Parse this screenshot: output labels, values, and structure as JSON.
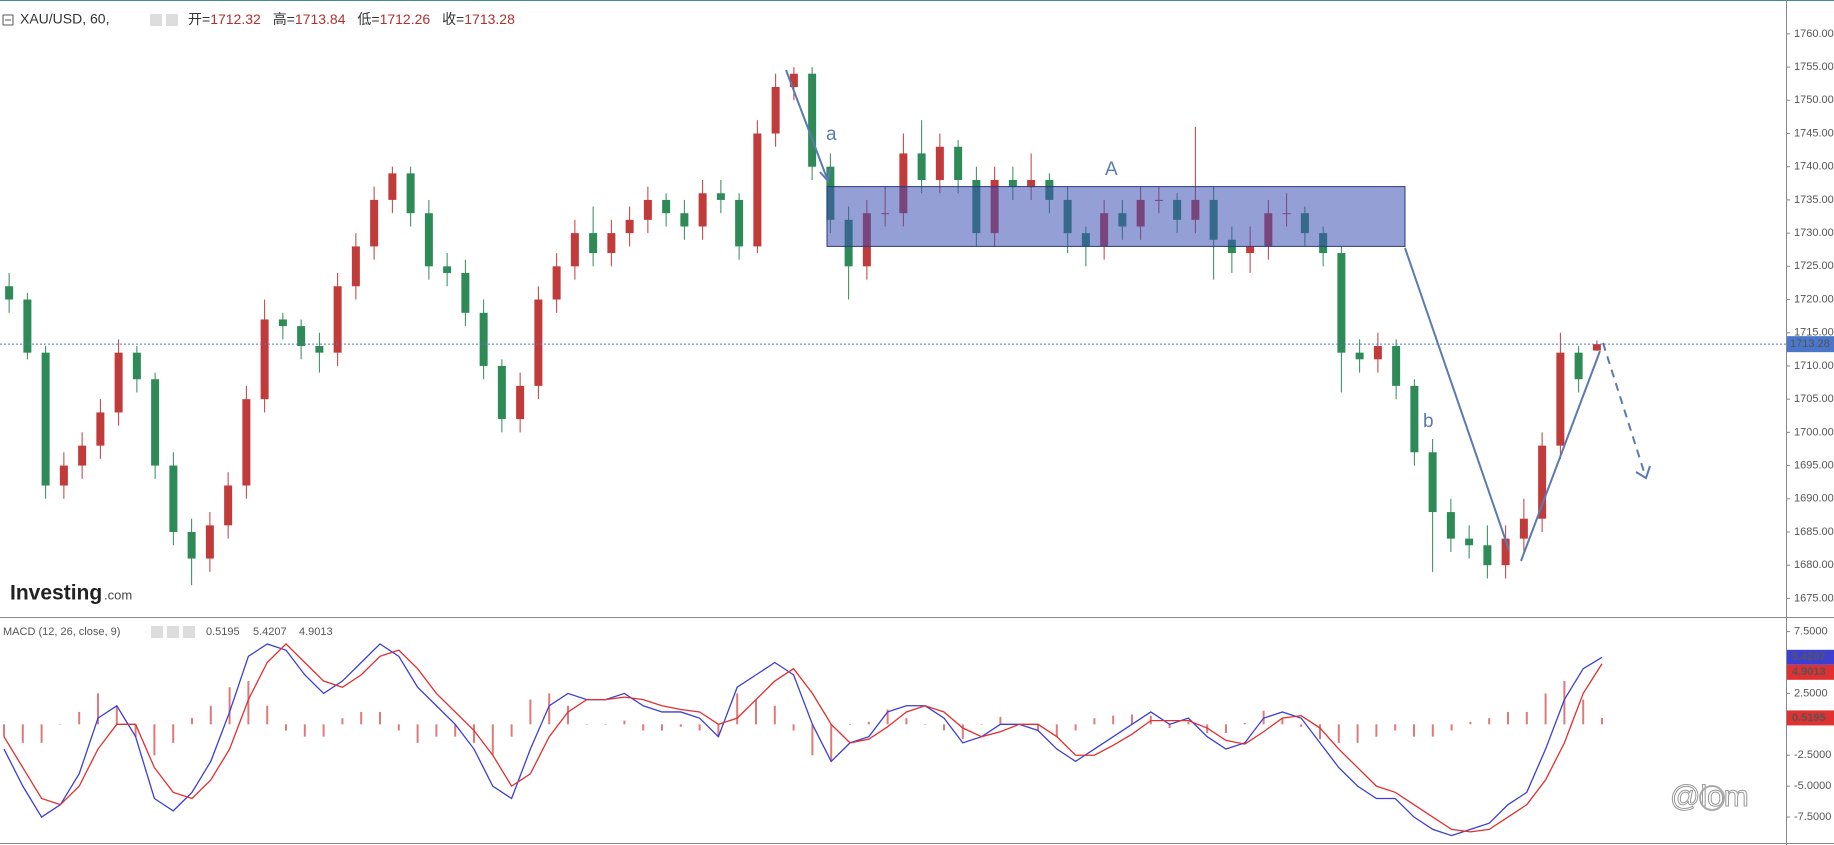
{
  "header": {
    "symbol": "XAU/USD, 60,",
    "open_label": "开=",
    "high_label": "高=",
    "low_label": "低=",
    "close_label": "收=",
    "watermark": "Investing",
    "watermark_suffix": ".com",
    "credit": "@lom"
  },
  "annotations": {
    "wave_a": "a",
    "zone": "A",
    "wave_b": "b"
  },
  "chart_data": [
    {
      "type": "candlestick",
      "up_color": "#c23b3b",
      "down_color": "#2e8b57",
      "price_line_color": "#4a77c9",
      "ylim": [
        1672.2,
        1765.1
      ],
      "yticks": [
        {
          "value": 1760,
          "label": "1760.00"
        },
        {
          "value": 1755,
          "label": "1755.00"
        },
        {
          "value": 1750,
          "label": "1750.00"
        },
        {
          "value": 1745,
          "label": "1745.00"
        },
        {
          "value": 1740,
          "label": "1740.00"
        },
        {
          "value": 1735,
          "label": "1735.00"
        },
        {
          "value": 1730,
          "label": "1730.00"
        },
        {
          "value": 1725,
          "label": "1725.00"
        },
        {
          "value": 1720,
          "label": "1720.00"
        },
        {
          "value": 1715,
          "label": "1715.00"
        },
        {
          "value": 1710,
          "label": "1710.00"
        },
        {
          "value": 1705,
          "label": "1705.00"
        },
        {
          "value": 1700,
          "label": "1700.00"
        },
        {
          "value": 1695,
          "label": "1695.00"
        },
        {
          "value": 1690,
          "label": "1690.00"
        },
        {
          "value": 1685,
          "label": "1685.00"
        },
        {
          "value": 1680,
          "label": "1680.00"
        },
        {
          "value": 1675,
          "label": "1675.00"
        }
      ],
      "candles": [
        [
          1722,
          1724,
          1718,
          1720
        ],
        [
          1720,
          1721,
          1711,
          1712
        ],
        [
          1712,
          1713,
          1690,
          1692
        ],
        [
          1692,
          1697,
          1690,
          1695
        ],
        [
          1695,
          1700,
          1693,
          1698
        ],
        [
          1698,
          1705,
          1696,
          1703
        ],
        [
          1703,
          1714,
          1701,
          1712
        ],
        [
          1712,
          1713,
          1706,
          1708
        ],
        [
          1708,
          1709,
          1693,
          1695
        ],
        [
          1695,
          1697,
          1683,
          1685
        ],
        [
          1685,
          1687,
          1677,
          1681
        ],
        [
          1681,
          1688,
          1679,
          1686
        ],
        [
          1686,
          1694,
          1684,
          1692
        ],
        [
          1692,
          1707,
          1690,
          1705
        ],
        [
          1705,
          1720,
          1703,
          1717
        ],
        [
          1717,
          1718,
          1714,
          1716
        ],
        [
          1716,
          1717,
          1711,
          1713
        ],
        [
          1713,
          1715,
          1709,
          1712
        ],
        [
          1712,
          1724,
          1710,
          1722
        ],
        [
          1722,
          1730,
          1720,
          1728
        ],
        [
          1728,
          1737,
          1726,
          1735
        ],
        [
          1735,
          1740,
          1733,
          1739
        ],
        [
          1739,
          1740,
          1731,
          1733
        ],
        [
          1733,
          1735,
          1723,
          1725
        ],
        [
          1725,
          1727,
          1722,
          1724
        ],
        [
          1724,
          1726,
          1716,
          1718
        ],
        [
          1718,
          1720,
          1708,
          1710
        ],
        [
          1710,
          1711,
          1700,
          1702
        ],
        [
          1702,
          1709,
          1700,
          1707
        ],
        [
          1707,
          1722,
          1705,
          1720
        ],
        [
          1720,
          1727,
          1718,
          1725
        ],
        [
          1725,
          1732,
          1723,
          1730
        ],
        [
          1730,
          1734,
          1725,
          1727
        ],
        [
          1727,
          1732,
          1725,
          1730
        ],
        [
          1730,
          1734,
          1728,
          1732
        ],
        [
          1732,
          1737,
          1730,
          1735
        ],
        [
          1735,
          1736,
          1731,
          1733
        ],
        [
          1733,
          1735,
          1729,
          1731
        ],
        [
          1731,
          1738,
          1729,
          1736
        ],
        [
          1736,
          1738,
          1733,
          1735
        ],
        [
          1735,
          1736,
          1726,
          1728
        ],
        [
          1728,
          1747,
          1727,
          1745
        ],
        [
          1745,
          1754,
          1743,
          1752
        ],
        [
          1752,
          1755,
          1750,
          1754
        ],
        [
          1754,
          1755,
          1738,
          1740
        ],
        [
          1740,
          1742,
          1730,
          1732
        ],
        [
          1732,
          1734,
          1720,
          1725
        ],
        [
          1725,
          1735,
          1723,
          1733
        ],
        [
          1733,
          1737,
          1731,
          1733
        ],
        [
          1733,
          1745,
          1731,
          1742
        ],
        [
          1742,
          1747,
          1736,
          1738
        ],
        [
          1738,
          1745,
          1736,
          1743
        ],
        [
          1743,
          1744,
          1736,
          1738
        ],
        [
          1738,
          1740,
          1728,
          1730
        ],
        [
          1730,
          1740,
          1728,
          1738
        ],
        [
          1738,
          1740,
          1735,
          1737
        ],
        [
          1737,
          1742,
          1735,
          1738
        ],
        [
          1738,
          1739,
          1733,
          1735
        ],
        [
          1735,
          1737,
          1727,
          1730
        ],
        [
          1730,
          1731,
          1725,
          1728
        ],
        [
          1728,
          1735,
          1726,
          1733
        ],
        [
          1733,
          1735,
          1729,
          1731
        ],
        [
          1731,
          1737,
          1729,
          1735
        ],
        [
          1735,
          1737,
          1733,
          1735
        ],
        [
          1735,
          1736,
          1730,
          1732
        ],
        [
          1732,
          1746,
          1730,
          1735
        ],
        [
          1735,
          1737,
          1723,
          1729
        ],
        [
          1729,
          1731,
          1724,
          1727
        ],
        [
          1727,
          1731,
          1724,
          1728
        ],
        [
          1728,
          1735,
          1726,
          1733
        ],
        [
          1733,
          1736,
          1731,
          1733
        ],
        [
          1733,
          1734,
          1728,
          1730
        ],
        [
          1730,
          1731,
          1725,
          1727
        ],
        [
          1727,
          1728,
          1706,
          1712
        ],
        [
          1712,
          1714,
          1709,
          1711
        ],
        [
          1711,
          1715,
          1709,
          1713
        ],
        [
          1713,
          1714,
          1705,
          1707
        ],
        [
          1707,
          1708,
          1695,
          1697
        ],
        [
          1697,
          1699,
          1679,
          1688
        ],
        [
          1688,
          1690,
          1682,
          1684
        ],
        [
          1684,
          1686,
          1681,
          1683
        ],
        [
          1683,
          1686,
          1678,
          1680
        ],
        [
          1680,
          1686,
          1678,
          1684
        ],
        [
          1684,
          1690,
          1682,
          1687
        ],
        [
          1687,
          1700,
          1685,
          1698
        ],
        [
          1698,
          1715,
          1696,
          1712
        ],
        [
          1712,
          1713,
          1706,
          1708
        ],
        [
          1712.32,
          1713.84,
          1712.26,
          1713.28
        ]
      ]
    },
    {
      "type": "macd",
      "title": "MACD (12, 26, close, 9)",
      "histogram_color": "#e07a7a",
      "ylim": [
        -9.6,
        8.6
      ],
      "yticks": [
        {
          "value": 7.5,
          "label": "7.5000"
        },
        {
          "value": 2.5,
          "label": "2.5000"
        },
        {
          "value": -2.5,
          "label": "-2.5000"
        },
        {
          "value": -5,
          "label": "-5.0000"
        },
        {
          "value": -7.5,
          "label": "-7.5000"
        }
      ],
      "histogram": [
        -1,
        -1.5,
        -1.5,
        0,
        1,
        2.5,
        1.5,
        -1,
        -2.5,
        -1.5,
        0.5,
        1.5,
        3,
        3.5,
        1.5,
        -0.5,
        -1,
        -1,
        0.5,
        1,
        1,
        -0.5,
        -1.5,
        -1,
        -1,
        -1.5,
        -2.5,
        -1,
        2,
        2.5,
        1.5,
        0,
        0,
        0.3,
        -0.5,
        -0.5,
        -0.2,
        -0.5,
        -1,
        2.5,
        2,
        1.5,
        -0.5,
        -2.5,
        -3,
        0,
        0.2,
        1.2,
        0.5,
        0,
        -0.5,
        -1.2,
        0,
        0.6,
        0,
        -0.5,
        -1,
        -0.5,
        0.5,
        0.7,
        0.8,
        0.7,
        -0.3,
        0.2,
        -0.7,
        -0.7,
        0.1,
        1.1,
        0.5,
        -0.2,
        -1.2,
        -1.5,
        -1.5,
        -1,
        -0.5,
        -1,
        -1,
        -0.5,
        0.2,
        0.5,
        1,
        1,
        2.5,
        3.5,
        2,
        0.5195
      ],
      "series": [
        {
          "color": "#3d3fd1",
          "values": [
            -2,
            -5,
            -7.5,
            -6.5,
            -4,
            0.5,
            1.5,
            -1,
            -6,
            -7,
            -5.5,
            -3,
            1,
            5.5,
            6.5,
            6,
            4,
            2.5,
            3.5,
            5,
            6.5,
            5.5,
            3,
            1.5,
            0,
            -2,
            -5,
            -6,
            -2,
            1.5,
            2.5,
            2,
            2,
            2.5,
            1.5,
            1,
            1,
            0.5,
            -1,
            3,
            4,
            5,
            4,
            0,
            -3,
            -1.5,
            -1,
            1,
            1.5,
            1.5,
            0.5,
            -1.5,
            -1,
            0,
            0,
            -0.5,
            -2,
            -3,
            -2,
            -1,
            0,
            1,
            0,
            0.5,
            -1,
            -2,
            -1.5,
            0.5,
            1,
            0.5,
            -1.5,
            -3.5,
            -5,
            -6,
            -6,
            -7.5,
            -8.5,
            -9,
            -8.5,
            -8,
            -6.5,
            -5.5,
            -2,
            2,
            4.5,
            5.4207
          ]
        },
        {
          "color": "#e03030",
          "values": [
            -1,
            -3.5,
            -6,
            -6.5,
            -5,
            -2,
            0,
            0,
            -3.5,
            -5.5,
            -6,
            -4.5,
            -2,
            2,
            5,
            6.5,
            5,
            3.5,
            3,
            4,
            5.5,
            6,
            4.5,
            2.5,
            1,
            -0.5,
            -2.5,
            -5,
            -4,
            -1,
            1,
            2,
            2,
            2.2,
            2,
            1.5,
            1.2,
            1,
            0,
            0.5,
            2,
            3.5,
            4.5,
            2.5,
            0,
            -1.5,
            -1.2,
            -0.2,
            1,
            1.5,
            1,
            -0.3,
            -1,
            -0.6,
            0,
            0,
            -1,
            -2.5,
            -2.5,
            -1.7,
            -0.8,
            0.3,
            0.3,
            0.3,
            -0.3,
            -1.3,
            -1.6,
            -0.6,
            0.5,
            0.7,
            -0.3,
            -2,
            -3.5,
            -5,
            -5.5,
            -6.5,
            -7.5,
            -8.5,
            -8.7,
            -8.5,
            -7.5,
            -6.5,
            -4.5,
            -1.5,
            2.5,
            4.9013
          ]
        }
      ]
    }
  ]
}
